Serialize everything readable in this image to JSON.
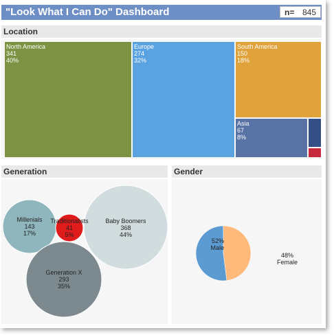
{
  "header": {
    "title": "\"Look What I Can Do\" Dashboard",
    "n_label": "n=",
    "n_value": "845"
  },
  "location": {
    "heading": "Location",
    "tiles": [
      {
        "name": "North America",
        "count": "341",
        "pct": "40%",
        "color": "#7d9343"
      },
      {
        "name": "Europe",
        "count": "274",
        "pct": "32%",
        "color": "#5ba3e0"
      },
      {
        "name": "South America",
        "count": "150",
        "pct": "18%",
        "color": "#e0a23a"
      },
      {
        "name": "Asia",
        "count": "67",
        "pct": "8%",
        "color": "#5a73a6"
      },
      {
        "name": "",
        "count": "",
        "pct": "",
        "color": "#344f86"
      },
      {
        "name": "",
        "count": "",
        "pct": "",
        "color": "#c8283b"
      }
    ]
  },
  "generation": {
    "heading": "Generation",
    "bubbles": [
      {
        "name": "Millenials",
        "count": "143",
        "pct": "17%",
        "color": "#8fb5bd"
      },
      {
        "name": "Traditionalists",
        "count": "41",
        "pct": "5%",
        "color": "#e01b1b"
      },
      {
        "name": "Baby Boomers",
        "count": "368",
        "pct": "44%",
        "color": "#d0dcdd"
      },
      {
        "name": "Generation X",
        "count": "293",
        "pct": "35%",
        "color": "#7c8a8f"
      }
    ]
  },
  "gender": {
    "heading": "Gender",
    "slices": [
      {
        "name": "Male",
        "pct": "52%",
        "value": 52,
        "color": "#5c9bd1"
      },
      {
        "name": "Female",
        "pct": "48%",
        "value": 48,
        "color": "#ffb97a"
      }
    ]
  }
}
